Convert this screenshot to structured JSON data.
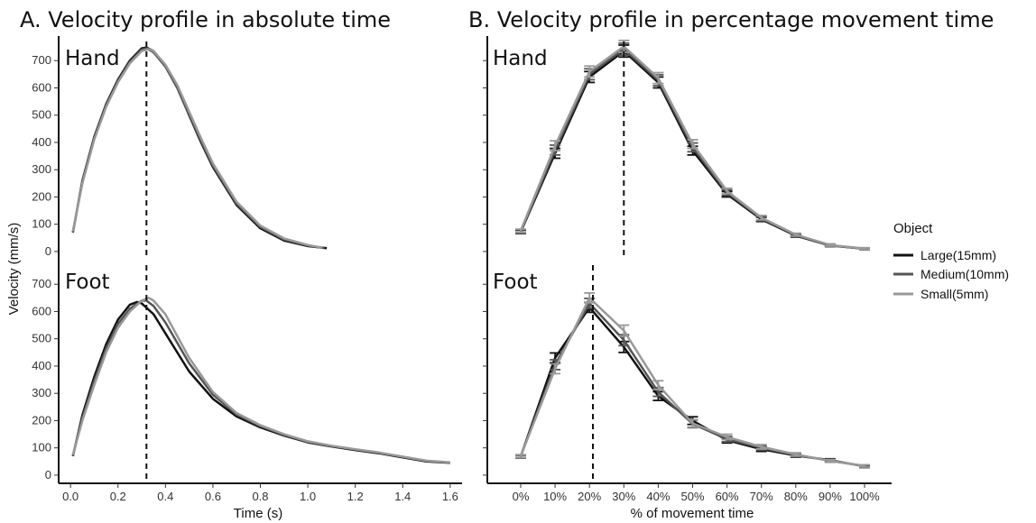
{
  "titles": {
    "a": "A. Velocity profile in absolute time",
    "b": "B. Velocity profile in percentage movement time"
  },
  "panels": {
    "hand": "Hand",
    "foot": "Foot"
  },
  "legend": {
    "title": "Object",
    "items": [
      {
        "label": "Large(15mm)",
        "color": "#111111"
      },
      {
        "label": "Medium(10mm)",
        "color": "#555555"
      },
      {
        "label": "Small(5mm)",
        "color": "#999999"
      }
    ]
  },
  "chart_data": [
    {
      "type": "line",
      "panel": "A-Hand",
      "xlabel": "Time (s)",
      "ylabel": "Velocity (mm/s)",
      "xlim": [
        -0.05,
        1.65
      ],
      "ylim": [
        -30,
        790
      ],
      "x_ticks": [
        0.0,
        0.2,
        0.4,
        0.6,
        0.8,
        1.0,
        1.2,
        1.4,
        1.6
      ],
      "y_ticks": [
        0,
        100,
        200,
        300,
        400,
        500,
        600,
        700
      ],
      "vline": 0.32,
      "series": [
        {
          "name": "Large(15mm)",
          "x": [
            0.01,
            0.05,
            0.1,
            0.15,
            0.2,
            0.25,
            0.3,
            0.32,
            0.35,
            0.4,
            0.45,
            0.5,
            0.55,
            0.6,
            0.7,
            0.8,
            0.9,
            1.0,
            1.08
          ],
          "y": [
            70,
            260,
            420,
            540,
            630,
            700,
            745,
            748,
            735,
            680,
            600,
            500,
            400,
            310,
            170,
            85,
            40,
            20,
            12
          ]
        },
        {
          "name": "Medium(10mm)",
          "x": [
            0.01,
            0.05,
            0.1,
            0.15,
            0.2,
            0.25,
            0.3,
            0.32,
            0.35,
            0.4,
            0.45,
            0.5,
            0.55,
            0.6,
            0.7,
            0.8,
            0.9,
            1.0,
            1.07
          ],
          "y": [
            72,
            255,
            415,
            535,
            625,
            695,
            740,
            745,
            730,
            678,
            600,
            503,
            405,
            315,
            175,
            90,
            44,
            22,
            13
          ]
        },
        {
          "name": "Small(5mm)",
          "x": [
            0.01,
            0.05,
            0.1,
            0.15,
            0.2,
            0.25,
            0.3,
            0.33,
            0.35,
            0.4,
            0.45,
            0.5,
            0.55,
            0.6,
            0.7,
            0.8,
            0.9,
            1.0,
            1.06
          ],
          "y": [
            74,
            250,
            410,
            530,
            620,
            690,
            735,
            742,
            735,
            685,
            610,
            513,
            415,
            323,
            182,
            95,
            48,
            24,
            14
          ]
        }
      ]
    },
    {
      "type": "line",
      "panel": "A-Foot",
      "xlabel": "Time (s)",
      "ylabel": "Velocity (mm/s)",
      "xlim": [
        -0.05,
        1.65
      ],
      "ylim": [
        -30,
        790
      ],
      "x_ticks": [
        0.0,
        0.2,
        0.4,
        0.6,
        0.8,
        1.0,
        1.2,
        1.4,
        1.6
      ],
      "x_tick_labels": [
        "0.0",
        "0.2",
        "0.4",
        "0.6",
        "0.8",
        "1.0",
        "1.2",
        "1.4",
        "1.6"
      ],
      "y_ticks": [
        0,
        100,
        200,
        300,
        400,
        500,
        600,
        700
      ],
      "vline": 0.32,
      "series": [
        {
          "name": "Large(15mm)",
          "x": [
            0.01,
            0.05,
            0.1,
            0.15,
            0.2,
            0.25,
            0.28,
            0.3,
            0.35,
            0.4,
            0.5,
            0.6,
            0.7,
            0.8,
            0.9,
            1.0,
            1.1,
            1.2,
            1.3,
            1.4,
            1.5,
            1.6
          ],
          "y": [
            70,
            220,
            360,
            480,
            570,
            625,
            635,
            630,
            590,
            520,
            380,
            280,
            215,
            175,
            145,
            120,
            105,
            92,
            80,
            65,
            50,
            45
          ]
        },
        {
          "name": "Medium(10mm)",
          "x": [
            0.01,
            0.05,
            0.1,
            0.15,
            0.2,
            0.25,
            0.3,
            0.32,
            0.35,
            0.4,
            0.5,
            0.6,
            0.7,
            0.8,
            0.9,
            1.0,
            1.1,
            1.2,
            1.3,
            1.4,
            1.5,
            1.6
          ],
          "y": [
            72,
            210,
            345,
            465,
            555,
            610,
            640,
            640,
            620,
            560,
            410,
            295,
            222,
            180,
            148,
            122,
            107,
            94,
            82,
            67,
            52,
            46
          ]
        },
        {
          "name": "Small(5mm)",
          "x": [
            0.01,
            0.05,
            0.1,
            0.15,
            0.2,
            0.25,
            0.3,
            0.33,
            0.35,
            0.4,
            0.5,
            0.6,
            0.7,
            0.8,
            0.9,
            1.0,
            1.1,
            1.2,
            1.3,
            1.4,
            1.5,
            1.6
          ],
          "y": [
            74,
            200,
            330,
            450,
            540,
            600,
            640,
            650,
            640,
            590,
            430,
            305,
            228,
            183,
            150,
            124,
            108,
            95,
            83,
            68,
            53,
            47
          ]
        }
      ]
    },
    {
      "type": "line",
      "panel": "B-Hand",
      "xlabel": "% of movement time",
      "ylim": [
        -30,
        790
      ],
      "x_categories": [
        "0%",
        "10%",
        "20%",
        "30%",
        "40%",
        "50%",
        "60%",
        "70%",
        "80%",
        "90%",
        "100%"
      ],
      "vline": "30%",
      "series": [
        {
          "name": "Large(15mm)",
          "values": [
            72,
            360,
            640,
            735,
            620,
            370,
            210,
            118,
            58,
            22,
            10
          ],
          "error": [
            6,
            18,
            20,
            22,
            20,
            16,
            10,
            8,
            5,
            4,
            3
          ]
        },
        {
          "name": "Medium(10mm)",
          "values": [
            74,
            372,
            650,
            742,
            628,
            382,
            216,
            121,
            60,
            23,
            10
          ],
          "error": [
            6,
            18,
            20,
            22,
            20,
            16,
            10,
            8,
            5,
            4,
            3
          ]
        },
        {
          "name": "Small(5mm)",
          "values": [
            76,
            388,
            660,
            752,
            636,
            394,
            222,
            124,
            62,
            24,
            11
          ],
          "error": [
            6,
            18,
            20,
            22,
            20,
            16,
            10,
            8,
            5,
            4,
            3
          ]
        }
      ]
    },
    {
      "type": "line",
      "panel": "B-Foot",
      "xlabel": "% of movement time",
      "ylim": [
        -30,
        790
      ],
      "x_categories": [
        "0%",
        "10%",
        "20%",
        "30%",
        "40%",
        "50%",
        "60%",
        "70%",
        "80%",
        "90%",
        "100%"
      ],
      "vline": "21%",
      "vline_x": 21,
      "series": [
        {
          "name": "Large(15mm)",
          "values": [
            68,
            430,
            615,
            470,
            290,
            200,
            128,
            95,
            72,
            55,
            32
          ],
          "error": [
            5,
            18,
            18,
            20,
            16,
            14,
            10,
            8,
            6,
            5,
            4
          ]
        },
        {
          "name": "Medium(10mm)",
          "values": [
            69,
            405,
            630,
            495,
            305,
            188,
            132,
            100,
            74,
            53,
            33
          ],
          "error": [
            5,
            18,
            18,
            20,
            16,
            14,
            10,
            8,
            6,
            5,
            4
          ]
        },
        {
          "name": "Small(5mm)",
          "values": [
            70,
            390,
            650,
            530,
            330,
            190,
            140,
            104,
            76,
            52,
            34
          ],
          "error": [
            5,
            18,
            18,
            20,
            16,
            14,
            10,
            8,
            6,
            5,
            4
          ]
        }
      ]
    }
  ]
}
